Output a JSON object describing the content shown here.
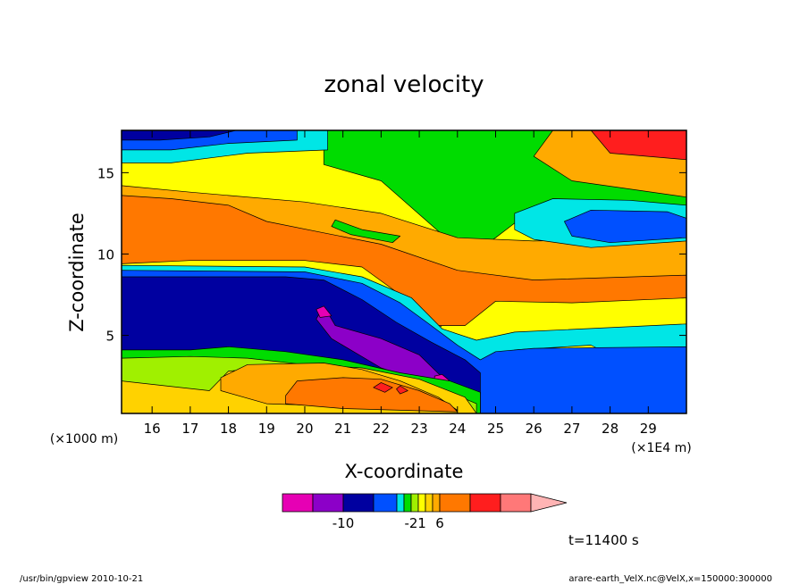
{
  "chart_data": {
    "type": "heatmap",
    "title": "zonal velocity",
    "xlabel": "X-coordinate",
    "ylabel": "Z-coordinate",
    "x_unit": "(×1E4 m)",
    "y_unit": "(×1000 m)",
    "xlim": [
      15.2,
      30.0
    ],
    "ylim": [
      0.2,
      17.6
    ],
    "x_ticks": [
      16,
      17,
      18,
      19,
      20,
      21,
      22,
      23,
      24,
      25,
      26,
      27,
      28,
      29
    ],
    "y_ticks": [
      5,
      10,
      15
    ],
    "time_label": "t=11400 s",
    "colorbar": {
      "colors": [
        "#e600b4",
        "#8c00c8",
        "#0000a0",
        "#0050ff",
        "#00e6e6",
        "#00dc00",
        "#a0f000",
        "#ffff00",
        "#ffd200",
        "#ffaa00",
        "#ff7800",
        "#ff1e1e",
        "#ff7878",
        "#ffb4b4"
      ],
      "tick_labels": [
        {
          "index": 2,
          "label": "-10"
        },
        {
          "index": 6,
          "label": "-2"
        },
        {
          "index": 7.5,
          "label": "1"
        },
        {
          "index": 10,
          "label": "6"
        }
      ]
    },
    "regions": [
      {
        "level": 7,
        "points": [
          [
            15.2,
            0.2
          ],
          [
            30,
            0.2
          ],
          [
            30,
            17.6
          ],
          [
            15.2,
            17.6
          ]
        ]
      },
      {
        "level": 5,
        "points": [
          [
            20.5,
            17.6
          ],
          [
            20.5,
            15.5
          ],
          [
            22,
            14.5
          ],
          [
            23.6,
            11.2
          ],
          [
            24.2,
            9.8
          ],
          [
            25,
            11
          ],
          [
            26,
            12.8
          ],
          [
            30,
            13
          ],
          [
            30,
            17.6
          ]
        ]
      },
      {
        "level": 9,
        "points": [
          [
            15.2,
            14.2
          ],
          [
            17,
            13.8
          ],
          [
            20,
            13.2
          ],
          [
            22,
            12.5
          ],
          [
            24,
            11
          ],
          [
            26,
            10.8
          ],
          [
            30,
            11
          ],
          [
            30,
            13.5
          ],
          [
            27,
            14.5
          ],
          [
            26,
            16
          ],
          [
            26.5,
            17.6
          ],
          [
            30,
            17.6
          ],
          [
            30,
            8
          ],
          [
            27,
            7.6
          ],
          [
            25,
            7.4
          ],
          [
            24,
            6.5
          ],
          [
            23.5,
            5.4
          ],
          [
            23.2,
            7
          ],
          [
            22,
            9.2
          ],
          [
            20,
            9.9
          ],
          [
            17,
            9.8
          ],
          [
            15.2,
            9.8
          ]
        ]
      },
      {
        "level": 10,
        "points": [
          [
            15.2,
            13.6
          ],
          [
            16.5,
            13.4
          ],
          [
            18,
            13
          ],
          [
            19,
            12
          ],
          [
            20.5,
            11.3
          ],
          [
            22,
            10.6
          ],
          [
            24,
            9
          ],
          [
            26,
            8.4
          ],
          [
            30,
            8.7
          ],
          [
            30,
            7.3
          ],
          [
            27,
            7
          ],
          [
            25,
            7.1
          ],
          [
            24.2,
            5.6
          ],
          [
            23.5,
            5.6
          ],
          [
            22.5,
            7.5
          ],
          [
            21.5,
            9.2
          ],
          [
            20,
            9.6
          ],
          [
            17,
            9.6
          ],
          [
            15.2,
            9.4
          ]
        ]
      },
      {
        "level": 11,
        "points": [
          [
            27.5,
            17.6
          ],
          [
            28,
            16.2
          ],
          [
            30,
            15.8
          ],
          [
            30,
            17.6
          ]
        ]
      },
      {
        "level": 4,
        "points": [
          [
            15.2,
            17.6
          ],
          [
            20.6,
            17.6
          ],
          [
            20.6,
            16.4
          ],
          [
            18.5,
            16.2
          ],
          [
            16.5,
            15.6
          ],
          [
            15.2,
            15.6
          ]
        ]
      },
      {
        "level": 3,
        "points": [
          [
            15.2,
            17.6
          ],
          [
            19.8,
            17.6
          ],
          [
            19.8,
            17
          ],
          [
            18,
            16.8
          ],
          [
            16.5,
            16.4
          ],
          [
            15.2,
            16.4
          ]
        ]
      },
      {
        "level": 2,
        "points": [
          [
            15.2,
            17.6
          ],
          [
            18.2,
            17.6
          ],
          [
            17.5,
            17.2
          ],
          [
            16.2,
            17
          ],
          [
            15.2,
            17
          ]
        ]
      },
      {
        "level": 4,
        "points": [
          [
            25.5,
            12.5
          ],
          [
            26.5,
            13.4
          ],
          [
            28.5,
            13.3
          ],
          [
            30,
            13
          ],
          [
            30,
            10.8
          ],
          [
            27.5,
            10.4
          ],
          [
            26,
            10.9
          ],
          [
            25.5,
            11.5
          ]
        ]
      },
      {
        "level": 3,
        "points": [
          [
            26.8,
            12
          ],
          [
            27.5,
            12.7
          ],
          [
            29.5,
            12.6
          ],
          [
            30,
            12.2
          ],
          [
            30,
            11
          ],
          [
            28,
            10.7
          ],
          [
            27,
            11.1
          ]
        ]
      },
      {
        "level": 5,
        "points": [
          [
            20.8,
            12.1
          ],
          [
            21.5,
            11.5
          ],
          [
            22.5,
            11.1
          ],
          [
            22.3,
            10.7
          ],
          [
            21.2,
            11.2
          ],
          [
            20.7,
            11.7
          ]
        ]
      },
      {
        "level": 4,
        "points": [
          [
            15.2,
            9.3
          ],
          [
            20,
            9.2
          ],
          [
            21.5,
            8.6
          ],
          [
            22.8,
            7.3
          ],
          [
            23.6,
            5.4
          ],
          [
            24.5,
            4.7
          ],
          [
            25.5,
            5.2
          ],
          [
            30,
            5.7
          ],
          [
            30,
            3.9
          ],
          [
            28,
            3.8
          ],
          [
            27.5,
            4.4
          ],
          [
            25.5,
            4.1
          ],
          [
            24.6,
            2.5
          ],
          [
            24.6,
            1.7
          ],
          [
            23,
            2.3
          ],
          [
            21,
            3.2
          ],
          [
            18,
            4.5
          ],
          [
            16,
            4.4
          ],
          [
            15.2,
            4.4
          ]
        ]
      },
      {
        "level": 3,
        "points": [
          [
            15.2,
            9
          ],
          [
            20,
            8.9
          ],
          [
            21.5,
            8.2
          ],
          [
            22.5,
            7
          ],
          [
            23.2,
            5.8
          ],
          [
            24,
            4.4
          ],
          [
            24.6,
            3.5
          ],
          [
            25,
            4
          ],
          [
            26,
            4.2
          ],
          [
            30,
            4.3
          ],
          [
            30,
            0.2
          ],
          [
            24.6,
            0.2
          ],
          [
            24.6,
            1.5
          ],
          [
            23,
            2.2
          ],
          [
            21,
            3
          ],
          [
            18,
            4
          ],
          [
            16,
            4
          ],
          [
            15.2,
            4
          ]
        ]
      },
      {
        "level": 2,
        "points": [
          [
            15.2,
            8.6
          ],
          [
            19.5,
            8.6
          ],
          [
            20.5,
            8.4
          ],
          [
            21.5,
            7.2
          ],
          [
            22.4,
            5.8
          ],
          [
            23.3,
            4.6
          ],
          [
            24.2,
            3.5
          ],
          [
            24.6,
            2.7
          ],
          [
            24.6,
            1.4
          ],
          [
            23,
            2
          ],
          [
            21,
            2.8
          ],
          [
            19,
            3.6
          ],
          [
            17,
            4
          ],
          [
            15.2,
            3.9
          ]
        ]
      },
      {
        "level": 1,
        "points": [
          [
            20.5,
            6.8
          ],
          [
            20.8,
            5.6
          ],
          [
            22,
            4.8
          ],
          [
            23,
            3.8
          ],
          [
            23.7,
            2.2
          ],
          [
            23.3,
            2
          ],
          [
            22,
            3
          ],
          [
            20.7,
            4.8
          ],
          [
            20.3,
            6
          ]
        ]
      },
      {
        "level": 0,
        "points": [
          [
            20.5,
            6.8
          ],
          [
            20.7,
            6.2
          ],
          [
            20.4,
            6.1
          ],
          [
            20.3,
            6.6
          ]
        ]
      },
      {
        "level": 0,
        "points": [
          [
            23.6,
            2.6
          ],
          [
            23.8,
            2.2
          ],
          [
            23.4,
            2.1
          ],
          [
            23.4,
            2.5
          ]
        ]
      },
      {
        "level": 5,
        "points": [
          [
            15.2,
            4.1
          ],
          [
            17,
            4.1
          ],
          [
            18,
            4.3
          ],
          [
            19.5,
            4
          ],
          [
            21,
            3.5
          ],
          [
            22.5,
            2.7
          ],
          [
            23.8,
            2.2
          ],
          [
            24.6,
            1.5
          ],
          [
            24.6,
            0.2
          ],
          [
            15.2,
            0.2
          ]
        ]
      },
      {
        "level": 6,
        "points": [
          [
            15.2,
            3.6
          ],
          [
            17,
            3.7
          ],
          [
            18.5,
            3.6
          ],
          [
            20,
            3.2
          ],
          [
            21.5,
            2.6
          ],
          [
            23.5,
            1.8
          ],
          [
            24.5,
            0.8
          ],
          [
            24.5,
            0.2
          ],
          [
            15.2,
            0.2
          ]
        ]
      },
      {
        "level": 8,
        "points": [
          [
            15.2,
            2.2
          ],
          [
            17.5,
            1.6
          ],
          [
            18,
            2.8
          ],
          [
            20,
            3.2
          ],
          [
            21.5,
            3
          ],
          [
            23,
            2.3
          ],
          [
            24.2,
            1.2
          ],
          [
            24.5,
            0.2
          ],
          [
            15.2,
            0.2
          ]
        ]
      },
      {
        "level": 9,
        "points": [
          [
            17.8,
            2.4
          ],
          [
            18.5,
            3.2
          ],
          [
            20.5,
            3.3
          ],
          [
            21.5,
            2.9
          ],
          [
            22.5,
            2.2
          ],
          [
            23.5,
            1.2
          ],
          [
            24,
            0.4
          ],
          [
            19,
            0.8
          ],
          [
            17.8,
            1.6
          ]
        ]
      },
      {
        "level": 10,
        "points": [
          [
            19.5,
            1.3
          ],
          [
            19.8,
            2.2
          ],
          [
            21,
            2.4
          ],
          [
            22,
            2.3
          ],
          [
            23,
            1.6
          ],
          [
            23.8,
            0.8
          ],
          [
            24,
            0.3
          ],
          [
            21,
            0.5
          ],
          [
            19.5,
            0.8
          ]
        ]
      },
      {
        "level": 11,
        "points": [
          [
            22,
            2.1
          ],
          [
            22.3,
            1.8
          ],
          [
            22.1,
            1.5
          ],
          [
            21.8,
            1.8
          ]
        ]
      },
      {
        "level": 11,
        "points": [
          [
            22.5,
            1.9
          ],
          [
            22.7,
            1.6
          ],
          [
            22.5,
            1.4
          ],
          [
            22.4,
            1.7
          ]
        ]
      }
    ]
  },
  "footer": {
    "left": "/usr/bin/gpview  2010-10-21",
    "right": "arare-earth_VelX.nc@VelX,x=150000:300000"
  }
}
